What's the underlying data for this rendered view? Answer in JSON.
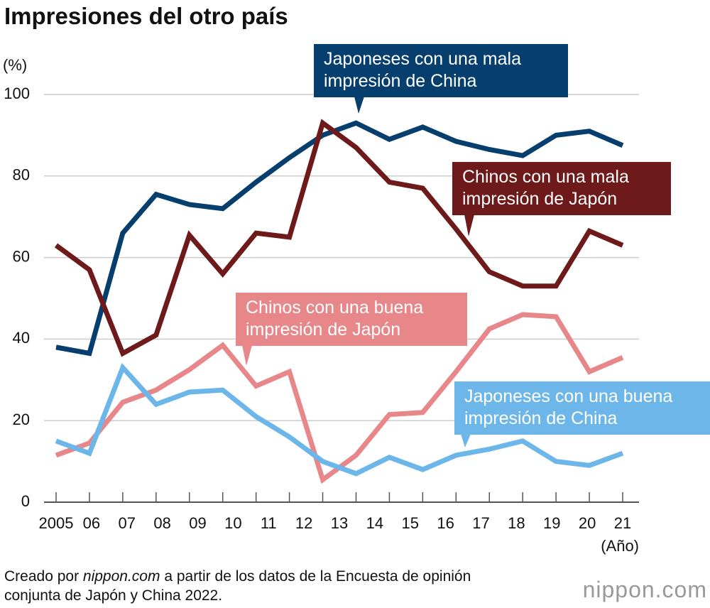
{
  "chart_data": {
    "type": "line",
    "title": "Impresiones del otro país",
    "y_label": "(%)",
    "x_label": "(Año)",
    "source": [
      "Creado por ",
      "nippon.com",
      " a partir de los datos de la Encuesta de opinión conjunta de Japón y China 2022."
    ],
    "logo": "nippon.com",
    "categories": [
      "2005",
      "06",
      "07",
      "08",
      "09",
      "10",
      "11",
      "12",
      "13",
      "14",
      "15",
      "16",
      "17",
      "18",
      "19",
      "20",
      "21",
      null
    ],
    "ylim": [
      0,
      100
    ],
    "yticks": [
      0,
      20,
      40,
      60,
      80,
      100
    ],
    "grid": true,
    "series": [
      {
        "name": "Japoneses con una mala\nimpresión de China",
        "color": "#063f6e",
        "values": [
          38,
          36.5,
          66,
          75.5,
          73,
          72,
          78.5,
          84.5,
          90,
          93,
          89,
          92,
          88.5,
          86.5,
          85,
          90,
          91,
          87.5
        ]
      },
      {
        "name": "Chinos con una mala\nimpresión de Japón",
        "color": "#6e1a1a",
        "values": [
          63,
          57,
          36.5,
          41,
          65.5,
          56,
          66,
          65,
          93,
          87,
          78.5,
          77,
          67,
          56.5,
          53,
          53,
          66.5,
          63
        ]
      },
      {
        "name": "Chinos con una buena\nimpresión de Japón",
        "color": "#e8878a",
        "values": [
          11.5,
          14.5,
          24.5,
          27.5,
          32.5,
          38.5,
          28.5,
          32,
          5.5,
          11.5,
          21.5,
          22,
          32,
          42.5,
          46,
          45.5,
          32,
          35.5
        ]
      },
      {
        "name": "Japoneses con una buena\nimpresión de China",
        "color": "#6db6ea",
        "values": [
          15,
          12,
          33,
          24,
          27,
          27.5,
          21,
          16,
          10,
          7,
          11,
          8,
          11.5,
          13,
          15,
          10,
          9,
          12
        ]
      }
    ]
  }
}
